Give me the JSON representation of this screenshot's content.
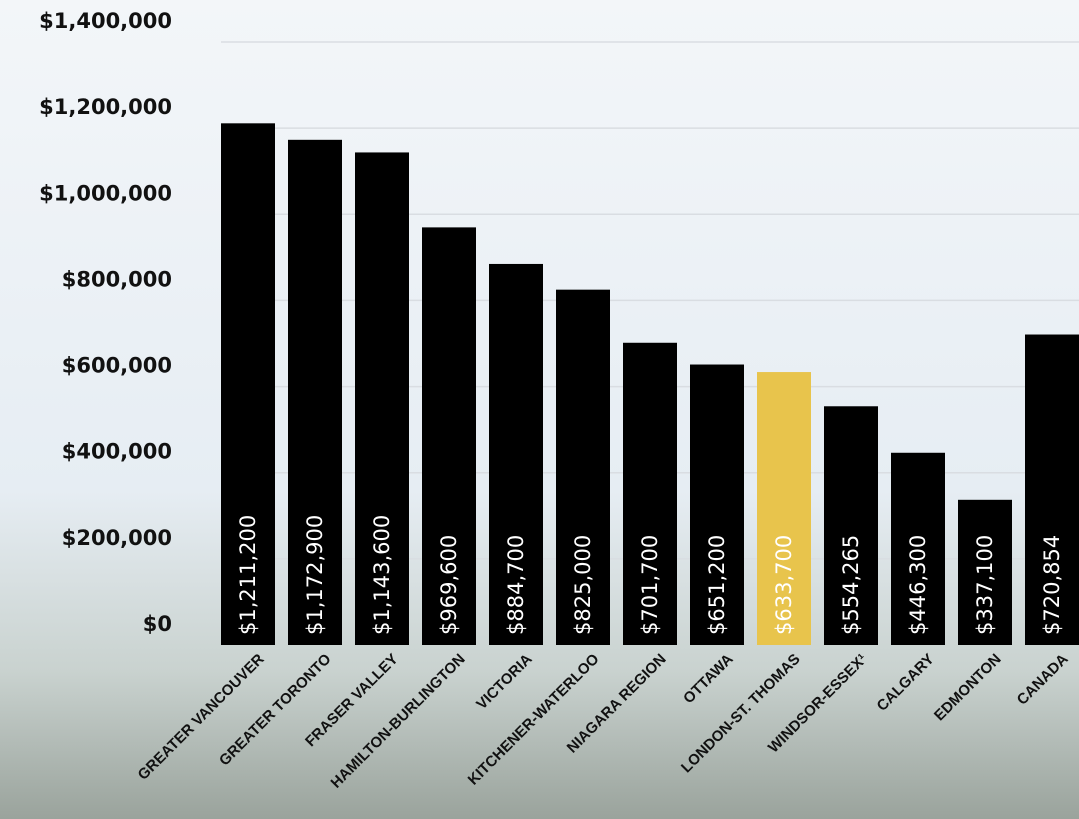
{
  "chart_data": {
    "type": "bar",
    "categories": [
      "GREATER VANCOUVER",
      "GREATER TORONTO",
      "FRASER VALLEY",
      "HAMILTON-BURLINGTON",
      "VICTORIA",
      "KITCHENER-WATERLOO",
      "NIAGARA REGION",
      "OTTAWA",
      "LONDON-ST. THOMAS",
      "WINDSOR-ESSEX¹",
      "CALGARY",
      "EDMONTON",
      "CANADA"
    ],
    "values": [
      1211200,
      1172900,
      1143600,
      969600,
      884700,
      825000,
      701700,
      651200,
      633700,
      554265,
      446300,
      337100,
      720854
    ],
    "value_labels": [
      "$1,211,200",
      "$1,172,900",
      "$1,143,600",
      "$969,600",
      "$884,700",
      "$825,000",
      "$701,700",
      "$651,200",
      "$633,700",
      "$554,265",
      "$446,300",
      "$337,100",
      "$720,854"
    ],
    "colors": [
      "#000000",
      "#000000",
      "#000000",
      "#000000",
      "#000000",
      "#000000",
      "#000000",
      "#000000",
      "#e8c44c",
      "#000000",
      "#000000",
      "#000000",
      "#000000"
    ],
    "ylim": [
      0,
      1400000
    ],
    "yticks": [
      {
        "value": 0,
        "label": "$0"
      },
      {
        "value": 200000,
        "label": "$200,000"
      },
      {
        "value": 400000,
        "label": "$400,000"
      },
      {
        "value": 600000,
        "label": "$600,000"
      },
      {
        "value": 800000,
        "label": "$800,000"
      },
      {
        "value": 1000000,
        "label": "$1,000,000"
      },
      {
        "value": 1200000,
        "label": "$1,200,000"
      },
      {
        "value": 1400000,
        "label": "$1,400,000"
      }
    ],
    "grid": true
  }
}
